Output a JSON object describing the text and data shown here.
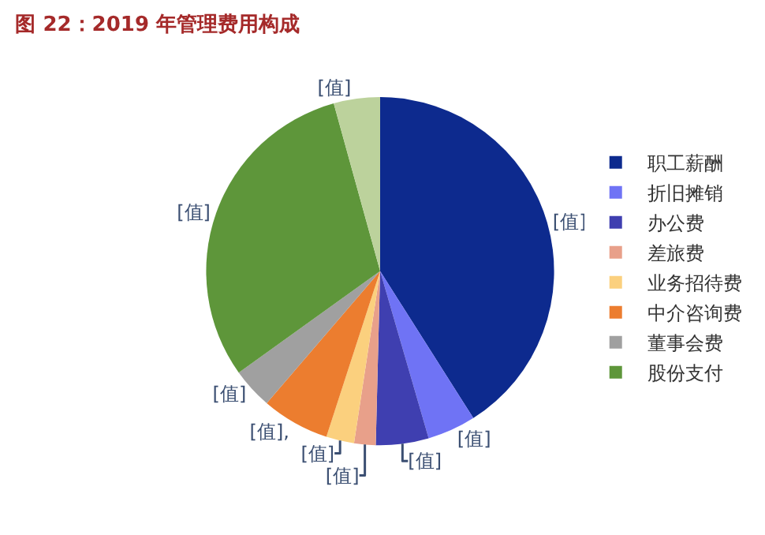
{
  "chart_data": {
    "type": "pie",
    "title": "图 22：2019 年管理费用构成",
    "categories": [
      "职工薪酬",
      "折旧摊销",
      "办公费",
      "差旅费",
      "业务招待费",
      "中介咨询费",
      "董事会费",
      "股份支付",
      null
    ],
    "values": [
      41,
      4.5,
      4.9,
      2,
      2.6,
      6.3,
      3.8,
      30.6,
      4.3
    ],
    "colors": [
      "#0d2a8e",
      "#6f73f5",
      "#3f3fb0",
      "#e8a08a",
      "#fbd07e",
      "#ec7d2f",
      "#a0a0a0",
      "#5e963a",
      "#bcd29c"
    ],
    "value_labels": [
      "[值]",
      "[值]",
      "[值]",
      "[值]",
      "[值]",
      "[值],",
      "[值]",
      "[值]",
      "[值]"
    ],
    "legend": "right"
  }
}
